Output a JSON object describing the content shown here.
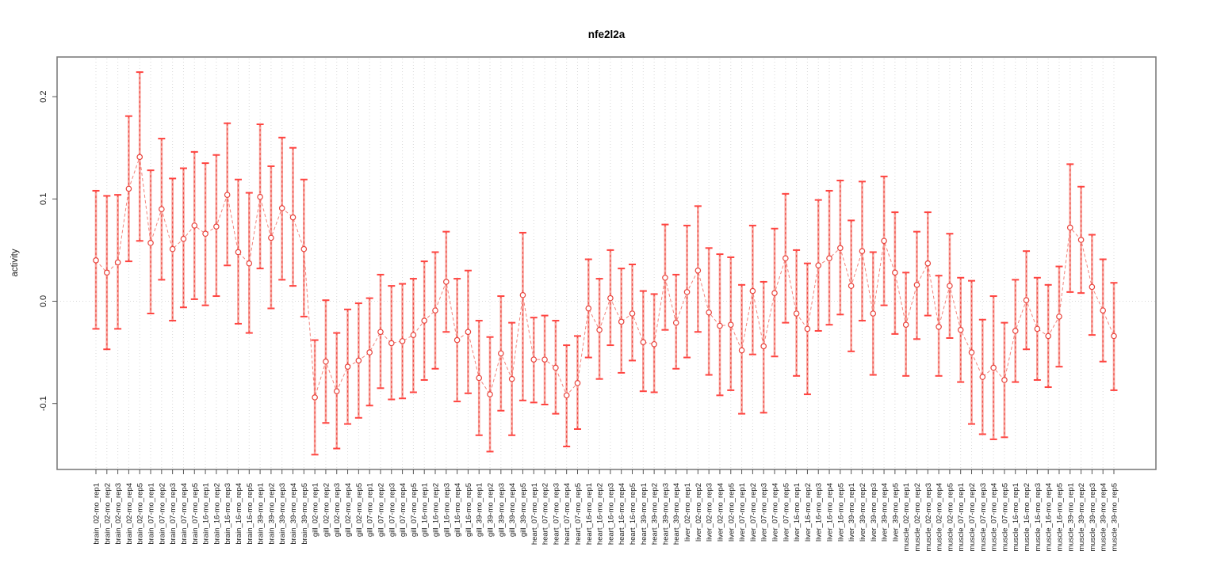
{
  "title": "nfe2l2a",
  "ylabel": "activity",
  "chart_data": {
    "type": "line",
    "subtype": "error-bar-plot",
    "ylim": [
      -0.16,
      0.235
    ],
    "yticks": [
      -0.1,
      0.0,
      0.1,
      0.2
    ],
    "ytick_labels": [
      "-0.1",
      "0.0",
      "0.1",
      "0.2"
    ],
    "grid": "vertical-dotted-per-category, horizontal-dotted-at-zero",
    "legend_position": "none",
    "colors": {
      "cap": "#ff4440",
      "bar_solid": "#f7a29b",
      "bar_dash": "#ee4a43",
      "point_stroke": "#e8433c",
      "point_fill": "#ffffff",
      "connector": "#f2837b",
      "grid": "#d8d8d8",
      "border": "#7d7d7d",
      "tick": "#555555",
      "text": "#1a1a1a"
    },
    "points": [
      {
        "label": "brain_02-mo_rep1",
        "mean": 0.04,
        "lo": -0.027,
        "hi": 0.108
      },
      {
        "label": "brain_02-mo_rep2",
        "mean": 0.028,
        "lo": -0.047,
        "hi": 0.103
      },
      {
        "label": "brain_02-mo_rep3",
        "mean": 0.038,
        "lo": -0.027,
        "hi": 0.104
      },
      {
        "label": "brain_02-mo_rep4",
        "mean": 0.11,
        "lo": 0.039,
        "hi": 0.181
      },
      {
        "label": "brain_02-mo_rep5",
        "mean": 0.141,
        "lo": 0.059,
        "hi": 0.224
      },
      {
        "label": "brain_07-mo_rep1",
        "mean": 0.057,
        "lo": -0.012,
        "hi": 0.128
      },
      {
        "label": "brain_07-mo_rep2",
        "mean": 0.09,
        "lo": 0.021,
        "hi": 0.159
      },
      {
        "label": "brain_07-mo_rep3",
        "mean": 0.051,
        "lo": -0.019,
        "hi": 0.12
      },
      {
        "label": "brain_07-mo_rep4",
        "mean": 0.061,
        "lo": -0.006,
        "hi": 0.13
      },
      {
        "label": "brain_07-mo_rep5",
        "mean": 0.074,
        "lo": 0.002,
        "hi": 0.146
      },
      {
        "label": "brain_16-mo_rep1",
        "mean": 0.066,
        "lo": -0.004,
        "hi": 0.135
      },
      {
        "label": "brain_16-mo_rep2",
        "mean": 0.073,
        "lo": 0.005,
        "hi": 0.143
      },
      {
        "label": "brain_16-mo_rep3",
        "mean": 0.104,
        "lo": 0.035,
        "hi": 0.174
      },
      {
        "label": "brain_16-mo_rep4",
        "mean": 0.048,
        "lo": -0.022,
        "hi": 0.119
      },
      {
        "label": "brain_16-mo_rep5",
        "mean": 0.037,
        "lo": -0.031,
        "hi": 0.106
      },
      {
        "label": "brain_39-mo_rep1",
        "mean": 0.102,
        "lo": 0.032,
        "hi": 0.173
      },
      {
        "label": "brain_39-mo_rep2",
        "mean": 0.062,
        "lo": -0.007,
        "hi": 0.132
      },
      {
        "label": "brain_39-mo_rep3",
        "mean": 0.091,
        "lo": 0.021,
        "hi": 0.16
      },
      {
        "label": "brain_39-mo_rep4",
        "mean": 0.082,
        "lo": 0.015,
        "hi": 0.15
      },
      {
        "label": "brain_39-mo_rep5",
        "mean": 0.051,
        "lo": -0.015,
        "hi": 0.119
      },
      {
        "label": "gill_02-mo_rep1",
        "mean": -0.094,
        "lo": -0.15,
        "hi": -0.038
      },
      {
        "label": "gill_02-mo_rep2",
        "mean": -0.059,
        "lo": -0.119,
        "hi": 0.001
      },
      {
        "label": "gill_02-mo_rep3",
        "mean": -0.088,
        "lo": -0.144,
        "hi": -0.031
      },
      {
        "label": "gill_02-mo_rep4",
        "mean": -0.064,
        "lo": -0.12,
        "hi": -0.008
      },
      {
        "label": "gill_02-mo_rep5",
        "mean": -0.058,
        "lo": -0.114,
        "hi": -0.002
      },
      {
        "label": "gill_07-mo_rep1",
        "mean": -0.05,
        "lo": -0.102,
        "hi": 0.003
      },
      {
        "label": "gill_07-mo_rep2",
        "mean": -0.03,
        "lo": -0.085,
        "hi": 0.026
      },
      {
        "label": "gill_07-mo_rep3",
        "mean": -0.041,
        "lo": -0.096,
        "hi": 0.015
      },
      {
        "label": "gill_07-mo_rep4",
        "mean": -0.039,
        "lo": -0.095,
        "hi": 0.017
      },
      {
        "label": "gill_07-mo_rep5",
        "mean": -0.033,
        "lo": -0.089,
        "hi": 0.022
      },
      {
        "label": "gill_16-mo_rep1",
        "mean": -0.019,
        "lo": -0.077,
        "hi": 0.039
      },
      {
        "label": "gill_16-mo_rep2",
        "mean": -0.009,
        "lo": -0.066,
        "hi": 0.048
      },
      {
        "label": "gill_16-mo_rep3",
        "mean": 0.019,
        "lo": -0.03,
        "hi": 0.068
      },
      {
        "label": "gill_16-mo_rep4",
        "mean": -0.038,
        "lo": -0.098,
        "hi": 0.022
      },
      {
        "label": "gill_16-mo_rep5",
        "mean": -0.03,
        "lo": -0.09,
        "hi": 0.03
      },
      {
        "label": "gill_39-mo_rep1",
        "mean": -0.075,
        "lo": -0.131,
        "hi": -0.019
      },
      {
        "label": "gill_39-mo_rep2",
        "mean": -0.091,
        "lo": -0.147,
        "hi": -0.035
      },
      {
        "label": "gill_39-mo_rep3",
        "mean": -0.051,
        "lo": -0.107,
        "hi": 0.005
      },
      {
        "label": "gill_39-mo_rep4",
        "mean": -0.076,
        "lo": -0.131,
        "hi": -0.021
      },
      {
        "label": "gill_39-mo_rep5",
        "mean": 0.006,
        "lo": -0.097,
        "hi": 0.067
      },
      {
        "label": "heart_07-mo_rep1",
        "mean": -0.057,
        "lo": -0.099,
        "hi": -0.016
      },
      {
        "label": "heart_07-mo_rep2",
        "mean": -0.057,
        "lo": -0.101,
        "hi": -0.014
      },
      {
        "label": "heart_07-mo_rep3",
        "mean": -0.065,
        "lo": -0.11,
        "hi": -0.019
      },
      {
        "label": "heart_07-mo_rep4",
        "mean": -0.092,
        "lo": -0.142,
        "hi": -0.043
      },
      {
        "label": "heart_07-mo_rep5",
        "mean": -0.08,
        "lo": -0.125,
        "hi": -0.034
      },
      {
        "label": "heart_16-mo_rep1",
        "mean": -0.007,
        "lo": -0.055,
        "hi": 0.041
      },
      {
        "label": "heart_16-mo_rep2",
        "mean": -0.028,
        "lo": -0.076,
        "hi": 0.022
      },
      {
        "label": "heart_16-mo_rep3",
        "mean": 0.003,
        "lo": -0.043,
        "hi": 0.05
      },
      {
        "label": "heart_16-mo_rep4",
        "mean": -0.02,
        "lo": -0.07,
        "hi": 0.032
      },
      {
        "label": "heart_16-mo_rep5",
        "mean": -0.012,
        "lo": -0.058,
        "hi": 0.036
      },
      {
        "label": "heart_39-mo_rep1",
        "mean": -0.04,
        "lo": -0.088,
        "hi": 0.01
      },
      {
        "label": "heart_39-mo_rep2",
        "mean": -0.042,
        "lo": -0.089,
        "hi": 0.007
      },
      {
        "label": "heart_39-mo_rep3",
        "mean": 0.023,
        "lo": -0.028,
        "hi": 0.075
      },
      {
        "label": "heart_39-mo_rep4",
        "mean": -0.021,
        "lo": -0.066,
        "hi": 0.026
      },
      {
        "label": "liver_02-mo_rep1",
        "mean": 0.009,
        "lo": -0.055,
        "hi": 0.074
      },
      {
        "label": "liver_02-mo_rep2",
        "mean": 0.03,
        "lo": -0.03,
        "hi": 0.093
      },
      {
        "label": "liver_02-mo_rep3",
        "mean": -0.011,
        "lo": -0.072,
        "hi": 0.052
      },
      {
        "label": "liver_02-mo_rep4",
        "mean": -0.024,
        "lo": -0.092,
        "hi": 0.046
      },
      {
        "label": "liver_02-mo_rep5",
        "mean": -0.023,
        "lo": -0.087,
        "hi": 0.043
      },
      {
        "label": "liver_07-mo_rep1",
        "mean": -0.048,
        "lo": -0.11,
        "hi": 0.016
      },
      {
        "label": "liver_07-mo_rep2",
        "mean": 0.01,
        "lo": -0.052,
        "hi": 0.074
      },
      {
        "label": "liver_07-mo_rep3",
        "mean": -0.044,
        "lo": -0.109,
        "hi": 0.019
      },
      {
        "label": "liver_07-mo_rep4",
        "mean": 0.008,
        "lo": -0.054,
        "hi": 0.071
      },
      {
        "label": "liver_07-mo_rep5",
        "mean": 0.042,
        "lo": -0.021,
        "hi": 0.105
      },
      {
        "label": "liver_16-mo_rep1",
        "mean": -0.012,
        "lo": -0.073,
        "hi": 0.05
      },
      {
        "label": "liver_16-mo_rep2",
        "mean": -0.027,
        "lo": -0.091,
        "hi": 0.037
      },
      {
        "label": "liver_16-mo_rep3",
        "mean": 0.035,
        "lo": -0.029,
        "hi": 0.099
      },
      {
        "label": "liver_16-mo_rep4",
        "mean": 0.042,
        "lo": -0.023,
        "hi": 0.108
      },
      {
        "label": "liver_16-mo_rep5",
        "mean": 0.052,
        "lo": -0.013,
        "hi": 0.118
      },
      {
        "label": "liver_39-mo_rep1",
        "mean": 0.015,
        "lo": -0.049,
        "hi": 0.079
      },
      {
        "label": "liver_39-mo_rep2",
        "mean": 0.049,
        "lo": -0.019,
        "hi": 0.117
      },
      {
        "label": "liver_39-mo_rep3",
        "mean": -0.012,
        "lo": -0.072,
        "hi": 0.048
      },
      {
        "label": "liver_39-mo_rep4",
        "mean": 0.059,
        "lo": -0.004,
        "hi": 0.122
      },
      {
        "label": "liver_39-mo_rep5",
        "mean": 0.028,
        "lo": -0.032,
        "hi": 0.087
      },
      {
        "label": "muscle_02-mo_rep1",
        "mean": -0.023,
        "lo": -0.073,
        "hi": 0.028
      },
      {
        "label": "muscle_02-mo_rep2",
        "mean": 0.016,
        "lo": -0.037,
        "hi": 0.068
      },
      {
        "label": "muscle_02-mo_rep3",
        "mean": 0.037,
        "lo": -0.014,
        "hi": 0.087
      },
      {
        "label": "muscle_02-mo_rep4",
        "mean": -0.025,
        "lo": -0.073,
        "hi": 0.025
      },
      {
        "label": "muscle_02-mo_rep5",
        "mean": 0.015,
        "lo": -0.036,
        "hi": 0.066
      },
      {
        "label": "muscle_07-mo_rep1",
        "mean": -0.028,
        "lo": -0.079,
        "hi": 0.023
      },
      {
        "label": "muscle_07-mo_rep2",
        "mean": -0.05,
        "lo": -0.12,
        "hi": 0.02
      },
      {
        "label": "muscle_07-mo_rep3",
        "mean": -0.074,
        "lo": -0.13,
        "hi": -0.018
      },
      {
        "label": "muscle_07-mo_rep4",
        "mean": -0.065,
        "lo": -0.135,
        "hi": 0.005
      },
      {
        "label": "muscle_07-mo_rep5",
        "mean": -0.077,
        "lo": -0.133,
        "hi": -0.021
      },
      {
        "label": "muscle_16-mo_rep1",
        "mean": -0.029,
        "lo": -0.079,
        "hi": 0.021
      },
      {
        "label": "muscle_16-mo_rep2",
        "mean": 0.001,
        "lo": -0.047,
        "hi": 0.049
      },
      {
        "label": "muscle_16-mo_rep3",
        "mean": -0.027,
        "lo": -0.077,
        "hi": 0.023
      },
      {
        "label": "muscle_16-mo_rep4",
        "mean": -0.034,
        "lo": -0.084,
        "hi": 0.016
      },
      {
        "label": "muscle_16-mo_rep5",
        "mean": -0.015,
        "lo": -0.064,
        "hi": 0.034
      },
      {
        "label": "muscle_39-mo_rep1",
        "mean": 0.072,
        "lo": 0.009,
        "hi": 0.134
      },
      {
        "label": "muscle_39-mo_rep2",
        "mean": 0.06,
        "lo": 0.008,
        "hi": 0.112
      },
      {
        "label": "muscle_39-mo_rep3",
        "mean": 0.014,
        "lo": -0.033,
        "hi": 0.065
      },
      {
        "label": "muscle_39-mo_rep4",
        "mean": -0.009,
        "lo": -0.059,
        "hi": 0.041
      },
      {
        "label": "muscle_39-mo_rep5",
        "mean": -0.034,
        "lo": -0.087,
        "hi": 0.018
      }
    ]
  }
}
